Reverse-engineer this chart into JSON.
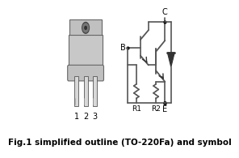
{
  "title": "Fig.1 simplified outline (TO-220Fa) and symbol",
  "title_fontsize": 7.5,
  "title_fontweight": "bold",
  "bg_color": "#ffffff",
  "text_color": "#000000",
  "line_color": "#555555",
  "component_color": "#333333",
  "pin_labels": [
    "1",
    "2",
    "3"
  ],
  "node_labels": [
    "B",
    "C",
    "E",
    "R1",
    "R2"
  ]
}
